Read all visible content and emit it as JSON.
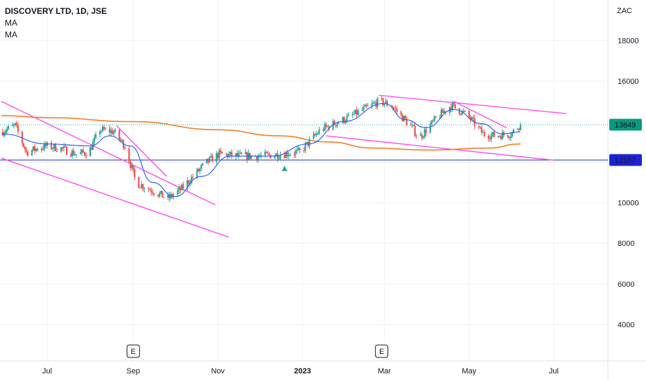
{
  "legend": {
    "title": "DISCOVERY LTD, 1D, JSE",
    "indicators": [
      "MA",
      "MA"
    ]
  },
  "currency": "ZAC",
  "colors": {
    "up": "#26a69a",
    "down": "#ef5350",
    "ma_fast": "#2962ff",
    "ma_slow": "#f57f2a",
    "trendlines": "#ff4cf0",
    "support": "#1e22d6",
    "last_price_line": "#26a69a",
    "last_price_label": "#089981",
    "support_label": "#1e22d6"
  },
  "chart_data": {
    "type": "candlestick",
    "ylim": [
      2200,
      20000
    ],
    "y_ticks": [
      4000,
      6000,
      8000,
      10000,
      12000,
      14000,
      16000,
      18000
    ],
    "y_tick_labels": [
      "4000",
      "6000",
      "8000",
      "10000",
      "",
      "",
      "16000",
      "18000"
    ],
    "x_ticks": [
      {
        "label": "Jul",
        "date": "2022-07-01",
        "bold": false
      },
      {
        "label": "Sep",
        "date": "2022-09-01",
        "bold": false
      },
      {
        "label": "Nov",
        "date": "2022-11-01",
        "bold": false
      },
      {
        "label": "2023",
        "date": "2023-01-01",
        "bold": true
      },
      {
        "label": "Mar",
        "date": "2023-03-01",
        "bold": false
      },
      {
        "label": "May",
        "date": "2023-05-01",
        "bold": false
      },
      {
        "label": "Jul",
        "date": "2023-07-01",
        "bold": false
      }
    ],
    "x_range": [
      "2022-05-28",
      "2023-08-09"
    ],
    "last_price": 13849,
    "support_level": 12107,
    "earnings_markers": [
      "2022-09-01",
      "2023-02-27"
    ],
    "price_path": [
      [
        "2022-05-29",
        13500
      ],
      [
        "2022-06-08",
        13800
      ],
      [
        "2022-06-16",
        12500
      ],
      [
        "2022-06-30",
        12800
      ],
      [
        "2022-07-10",
        12700
      ],
      [
        "2022-07-22",
        12400
      ],
      [
        "2022-07-31",
        12500
      ],
      [
        "2022-08-08",
        13600
      ],
      [
        "2022-08-18",
        13500
      ],
      [
        "2022-08-26",
        12800
      ],
      [
        "2022-09-03",
        11000
      ],
      [
        "2022-09-12",
        10700
      ],
      [
        "2022-09-26",
        10200
      ],
      [
        "2022-10-06",
        10700
      ],
      [
        "2022-10-14",
        11300
      ],
      [
        "2022-10-24",
        12000
      ],
      [
        "2022-11-02",
        12400
      ],
      [
        "2022-11-16",
        12300
      ],
      [
        "2022-12-02",
        12300
      ],
      [
        "2022-12-16",
        12400
      ],
      [
        "2022-12-30",
        12500
      ],
      [
        "2023-01-14",
        13600
      ],
      [
        "2023-02-03",
        14200
      ],
      [
        "2023-02-25",
        15000
      ],
      [
        "2023-03-06",
        14800
      ],
      [
        "2023-03-21",
        13700
      ],
      [
        "2023-03-26",
        13200
      ],
      [
        "2023-04-08",
        14200
      ],
      [
        "2023-04-18",
        14800
      ],
      [
        "2023-04-30",
        14300
      ],
      [
        "2023-05-11",
        13400
      ],
      [
        "2023-05-19",
        13300
      ],
      [
        "2023-05-31",
        13400
      ],
      [
        "2023-06-07",
        13849
      ]
    ],
    "ma_fast_path": [
      [
        "2022-05-29",
        13400
      ],
      [
        "2022-07-01",
        12900
      ],
      [
        "2022-08-01",
        12800
      ],
      [
        "2022-08-15",
        13300
      ],
      [
        "2022-08-30",
        12800
      ],
      [
        "2022-09-15",
        11000
      ],
      [
        "2022-10-01",
        10300
      ],
      [
        "2022-10-20",
        11300
      ],
      [
        "2022-11-10",
        12300
      ],
      [
        "2022-12-10",
        12300
      ],
      [
        "2023-01-05",
        12900
      ],
      [
        "2023-01-30",
        14000
      ],
      [
        "2023-03-01",
        14900
      ],
      [
        "2023-03-16",
        14100
      ],
      [
        "2023-03-31",
        13700
      ],
      [
        "2023-04-20",
        14600
      ],
      [
        "2023-05-10",
        13900
      ],
      [
        "2023-05-25",
        13400
      ],
      [
        "2023-06-07",
        13500
      ]
    ],
    "ma_slow_path": [
      [
        "2022-05-29",
        14300
      ],
      [
        "2022-07-01",
        14200
      ],
      [
        "2022-09-01",
        14000
      ],
      [
        "2022-11-01",
        13600
      ],
      [
        "2022-12-15",
        13300
      ],
      [
        "2023-01-20",
        13000
      ],
      [
        "2023-02-20",
        12700
      ],
      [
        "2023-04-01",
        12600
      ],
      [
        "2023-05-15",
        12700
      ],
      [
        "2023-06-07",
        12900
      ]
    ],
    "trendlines": [
      {
        "from": [
          "2022-05-29",
          15000
        ],
        "to": [
          "2022-10-30",
          9900
        ]
      },
      {
        "from": [
          "2022-05-29",
          12200
        ],
        "to": [
          "2022-11-09",
          8300
        ]
      },
      {
        "from": [
          "2022-08-20",
          13800
        ],
        "to": [
          "2022-09-25",
          11300
        ]
      },
      {
        "from": [
          "2023-02-25",
          15300
        ],
        "to": [
          "2023-07-10",
          14400
        ]
      },
      {
        "from": [
          "2023-01-18",
          13300
        ],
        "to": [
          "2023-07-01",
          12100
        ]
      },
      {
        "from": [
          "2023-04-20",
          15000
        ],
        "to": [
          "2023-05-28",
          13700
        ]
      }
    ]
  }
}
